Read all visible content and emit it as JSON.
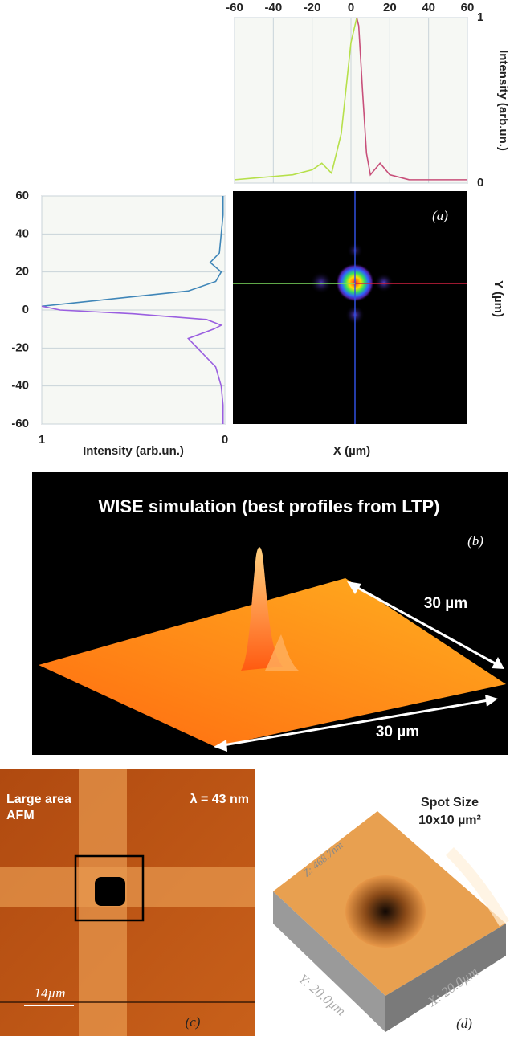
{
  "chart_data": [
    {
      "type": "line",
      "orientation": "horizontal",
      "x": [
        -60,
        -50,
        -40,
        -30,
        -20,
        -15,
        -10,
        -5,
        0,
        3,
        4,
        6,
        8,
        10,
        15,
        20,
        30,
        40,
        50,
        60
      ],
      "series": [
        {
          "color": "#b6e04a",
          "values": [
            0.02,
            0.03,
            0.04,
            0.05,
            0.08,
            0.12,
            0.06,
            0.3,
            0.85,
            1.0,
            null,
            null,
            null,
            null,
            null,
            null,
            null,
            null,
            null,
            null
          ]
        },
        {
          "color": "#c8507a",
          "values": [
            null,
            null,
            null,
            null,
            null,
            null,
            null,
            null,
            null,
            1.0,
            0.95,
            0.55,
            0.18,
            0.05,
            0.12,
            0.05,
            0.02,
            0.02,
            0.02,
            0.02
          ]
        }
      ],
      "xlim": [
        -60,
        60
      ],
      "xticks": [
        -60,
        -40,
        -20,
        0,
        20,
        40,
        60
      ],
      "ylim": [
        0,
        1
      ],
      "yticks": [
        0,
        1
      ],
      "ylabel": "Intensity (arb.un.)",
      "grid": true
    },
    {
      "type": "line",
      "orientation": "vertical",
      "x": [
        60,
        50,
        40,
        30,
        25,
        20,
        15,
        10,
        5,
        2,
        0,
        -2,
        -5,
        -8,
        -10,
        -15,
        -20,
        -30,
        -40,
        -50,
        -60
      ],
      "series": [
        {
          "color": "#3f86b8",
          "values": [
            0.01,
            0.01,
            0.02,
            0.03,
            0.08,
            0.02,
            0.05,
            0.2,
            0.7,
            1.0,
            null,
            null,
            null,
            null,
            null,
            null,
            null,
            null,
            null,
            null,
            null
          ]
        },
        {
          "color": "#9a5fe0",
          "values": [
            null,
            null,
            null,
            null,
            null,
            null,
            null,
            null,
            null,
            1.0,
            0.9,
            0.5,
            0.1,
            0.02,
            0.06,
            0.2,
            0.15,
            0.05,
            0.02,
            0.01,
            0.01
          ]
        }
      ],
      "xlim": [
        1,
        0
      ],
      "xticks": [
        1,
        0
      ],
      "xlabel": "Intensity (arb.un.)",
      "ylim": [
        -60,
        60
      ],
      "yticks": [
        -60,
        -40,
        -20,
        0,
        20,
        40,
        60
      ],
      "grid": true
    }
  ],
  "panel_a": {
    "label": "(a)",
    "xlabel": "X (µm)",
    "ylabel": "Y (µm)"
  },
  "panel_b": {
    "title": "WISE simulation (best profiles from LTP)",
    "label": "(b)",
    "dim1": "30 µm",
    "dim2": "30 µm"
  },
  "panel_c": {
    "text1": "Large area",
    "text2": "AFM",
    "wavelength": "λ = 43 nm",
    "scale": "14µm",
    "label": "(c)"
  },
  "panel_d": {
    "title1": "Spot Size",
    "title2": "10x10 µm²",
    "z": "Z: 468.7nm",
    "y": "Y: 20.0µm",
    "x": "X: 20.0µm",
    "label": "(d)"
  }
}
